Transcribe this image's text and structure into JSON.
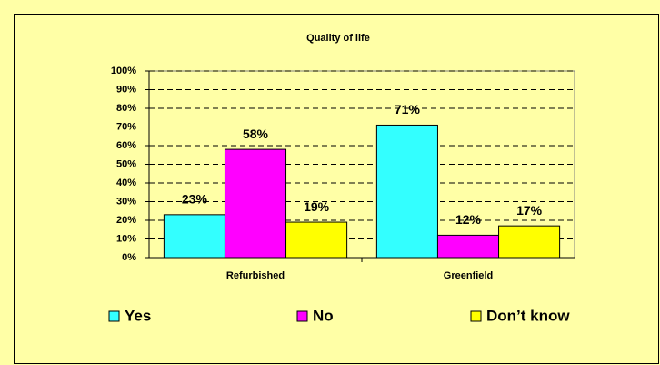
{
  "chart_data": {
    "type": "bar",
    "title": "Quality of life",
    "categories": [
      "Refurbished",
      "Greenfield"
    ],
    "series": [
      {
        "name": "Yes",
        "color": "#33ffff",
        "values": [
          23,
          71
        ],
        "value_labels": [
          "23%",
          "71%"
        ]
      },
      {
        "name": "No",
        "color": "#ff00ff",
        "values": [
          58,
          12
        ],
        "value_labels": [
          "58%",
          "12%"
        ]
      },
      {
        "name": "Don’t know",
        "color": "#ffff00",
        "values": [
          19,
          17
        ],
        "value_labels": [
          "19%",
          "17%"
        ]
      }
    ],
    "ylim": [
      0,
      100
    ],
    "yticks": [
      {
        "value": 0,
        "label": "0%"
      },
      {
        "value": 10,
        "label": "10%"
      },
      {
        "value": 20,
        "label": "20%"
      },
      {
        "value": 30,
        "label": "30%"
      },
      {
        "value": 40,
        "label": "40%"
      },
      {
        "value": 50,
        "label": "50%"
      },
      {
        "value": 60,
        "label": "60%"
      },
      {
        "value": 70,
        "label": "70%"
      },
      {
        "value": 80,
        "label": "80%"
      },
      {
        "value": 90,
        "label": "90%"
      },
      {
        "value": 100,
        "label": "100%"
      }
    ],
    "grid": true,
    "legend": "bottom"
  }
}
